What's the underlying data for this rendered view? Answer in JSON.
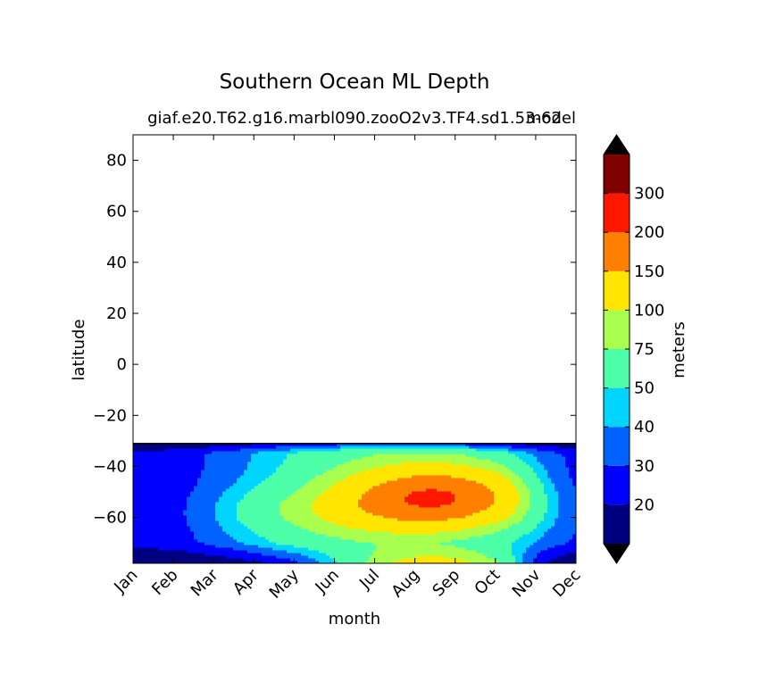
{
  "chart_data": {
    "type": "heatmap",
    "title": "Southern Ocean ML Depth",
    "subtitle": "giaf.e20.T62.g16.marbl090.zooO2v3.TF4.sd1.53-62",
    "subtitle_overlap": "model",
    "xlabel": "month",
    "ylabel": "latitude",
    "x_categories": [
      "Jan",
      "Feb",
      "Mar",
      "Apr",
      "May",
      "Jun",
      "Jul",
      "Aug",
      "Sep",
      "Oct",
      "Nov",
      "Dec"
    ],
    "ylim": [
      -78,
      90
    ],
    "yticks": [
      -60,
      -40,
      -20,
      0,
      20,
      40,
      60,
      80
    ],
    "data_lat_range": [
      -78,
      -31
    ],
    "colorbar": {
      "label": "meters",
      "levels": [
        20,
        30,
        40,
        50,
        75,
        100,
        150,
        200,
        300
      ],
      "tick_labels": [
        "20",
        "30",
        "40",
        "50",
        "75",
        "100",
        "150",
        "200",
        "300"
      ],
      "colors": [
        "#000080",
        "#0000ff",
        "#0063ff",
        "#00d5ff",
        "#4effa9",
        "#a9ff4e",
        "#ffe500",
        "#ff8000",
        "#ff1700",
        "#800000"
      ],
      "extend": "both",
      "under_color": "#000000",
      "over_color": "#000000"
    },
    "grid": false
  }
}
